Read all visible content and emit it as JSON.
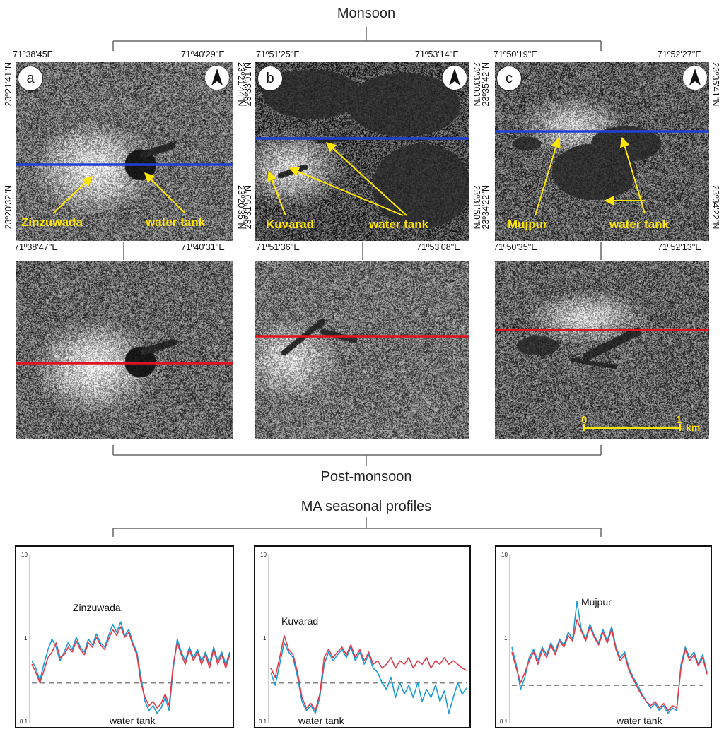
{
  "headings": {
    "top": "Monsoon",
    "middle": "Post-monsoon",
    "profiles": "MA seasonal profiles"
  },
  "colors": {
    "monsoon_line": "#1f3fd6",
    "post_line": "#e0141e",
    "annotation": "#ffe600",
    "profile_blue": "#1a9bd7",
    "profile_red": "#e03c4a",
    "threshold": "#888888"
  },
  "panels": [
    {
      "id": "a",
      "badge": "a",
      "north_icon": "north-arrow-icon",
      "coords": {
        "top_left": "71º38'45E",
        "top_right": "71º40'29''E",
        "bottom_left": "71º38'47''E",
        "bottom_right": "71º40'31''E",
        "left_top": "23º21'41''N",
        "left_bottom": "23º20'32''N",
        "right_top": "23º21'44''N",
        "right_bottom": "23º20'35''N"
      },
      "labels": {
        "place": "Zinzuwada",
        "tank": "water tank"
      }
    },
    {
      "id": "b",
      "badge": "b",
      "north_icon": "north-arrow-icon",
      "coords": {
        "top_left": "71º51'25''E",
        "top_right": "71º53'14''E",
        "bottom_left": "71º51'36''E",
        "bottom_right": "71º53'08''E",
        "left_top": "23º33'01''N",
        "left_bottom": "23º31'50''N",
        "right_top": "23º33'03''N",
        "right_bottom": "23º31'50''N"
      },
      "labels": {
        "place": "Kuvarad",
        "tank": "water tank"
      }
    },
    {
      "id": "c",
      "badge": "c",
      "north_icon": "north-arrow-icon",
      "coords": {
        "top_left": "71º50'19''E",
        "top_right": "71º52'27''E",
        "bottom_left": "71º50'35''E",
        "bottom_right": "71º52'13''E",
        "left_top": "23º35'42''N",
        "left_bottom": "23º34'22''N",
        "right_top": "23º35'41''N",
        "right_bottom": "23º34'22''N"
      },
      "labels": {
        "place": "Mujpur",
        "tank": "water tank"
      }
    }
  ],
  "scale_bar": {
    "start": "0",
    "end": "1",
    "unit": "km"
  },
  "chart_data": [
    {
      "type": "line",
      "yscale": "log",
      "ylim": [
        0.1,
        10
      ],
      "yticks": [
        "10",
        "1",
        "0.1"
      ],
      "threshold": 0.3,
      "annotations": [
        "Zinzuwada",
        "water tank"
      ],
      "series": [
        {
          "values": [
            0.55,
            0.45,
            0.32,
            0.5,
            0.75,
            1.0,
            0.8,
            0.55,
            0.7,
            0.9,
            0.75,
            1.05,
            0.8,
            0.7,
            1.0,
            0.85,
            1.15,
            0.9,
            0.8,
            1.1,
            1.5,
            1.2,
            1.6,
            1.1,
            1.3,
            0.9,
            0.7,
            0.35,
            0.18,
            0.14,
            0.16,
            0.13,
            0.15,
            0.2,
            0.14,
            0.45,
            1.0,
            0.7,
            0.55,
            0.8,
            0.6,
            0.75,
            0.55,
            0.7,
            0.5,
            0.8,
            0.55,
            0.7,
            0.5,
            0.7
          ]
        },
        {
          "values": [
            0.5,
            0.4,
            0.3,
            0.42,
            0.6,
            0.7,
            0.9,
            0.6,
            0.65,
            0.8,
            0.7,
            0.95,
            0.75,
            0.65,
            0.9,
            0.8,
            1.05,
            0.85,
            0.75,
            1.0,
            1.3,
            1.1,
            1.4,
            1.05,
            1.2,
            0.85,
            0.65,
            0.3,
            0.2,
            0.16,
            0.18,
            0.15,
            0.17,
            0.22,
            0.16,
            0.5,
            0.9,
            0.65,
            0.5,
            0.75,
            0.55,
            0.7,
            0.5,
            0.65,
            0.45,
            0.75,
            0.5,
            0.65,
            0.45,
            0.65
          ]
        }
      ]
    },
    {
      "type": "line",
      "yscale": "log",
      "ylim": [
        0.1,
        10
      ],
      "yticks": [
        "10",
        "1",
        "0.1"
      ],
      "threshold": 0.3,
      "annotations": [
        "Kuvarad",
        "water tank"
      ],
      "series": [
        {
          "values": [
            0.4,
            0.28,
            0.5,
            0.9,
            0.7,
            0.6,
            0.35,
            0.18,
            0.14,
            0.16,
            0.13,
            0.2,
            0.5,
            0.7,
            0.55,
            0.65,
            0.75,
            0.6,
            0.8,
            0.55,
            0.7,
            0.5,
            0.65,
            0.45,
            0.4,
            0.3,
            0.25,
            0.35,
            0.2,
            0.3,
            0.22,
            0.28,
            0.2,
            0.3,
            0.18,
            0.25,
            0.2,
            0.28,
            0.18,
            0.24,
            0.13,
            0.2,
            0.3,
            0.22,
            0.26
          ]
        },
        {
          "values": [
            0.45,
            0.35,
            0.6,
            1.1,
            0.75,
            0.65,
            0.4,
            0.2,
            0.15,
            0.17,
            0.14,
            0.22,
            0.6,
            0.75,
            0.6,
            0.7,
            0.8,
            0.65,
            0.85,
            0.6,
            0.75,
            0.55,
            0.7,
            0.5,
            0.55,
            0.45,
            0.5,
            0.6,
            0.45,
            0.55,
            0.5,
            0.6,
            0.45,
            0.55,
            0.5,
            0.6,
            0.45,
            0.55,
            0.5,
            0.6,
            0.5,
            0.55,
            0.5,
            0.45,
            0.42
          ]
        }
      ]
    },
    {
      "type": "line",
      "yscale": "log",
      "ylim": [
        0.1,
        10
      ],
      "yticks": [
        "10",
        "1",
        "0.1"
      ],
      "threshold": 0.28,
      "annotations": [
        "Mujpur",
        "water tank"
      ],
      "series": [
        {
          "values": [
            0.8,
            0.5,
            0.25,
            0.35,
            0.6,
            0.75,
            0.55,
            0.8,
            0.65,
            0.9,
            0.7,
            1.0,
            0.85,
            1.2,
            1.0,
            2.8,
            1.3,
            1.0,
            1.5,
            1.1,
            0.9,
            1.3,
            0.95,
            1.4,
            0.8,
            0.6,
            0.7,
            0.45,
            0.35,
            0.28,
            0.22,
            0.18,
            0.15,
            0.17,
            0.14,
            0.16,
            0.13,
            0.15,
            0.14,
            0.5,
            0.8,
            0.6,
            0.7,
            0.5,
            0.65,
            0.4
          ]
        },
        {
          "values": [
            0.7,
            0.45,
            0.3,
            0.4,
            0.55,
            0.7,
            0.5,
            0.75,
            0.6,
            0.85,
            0.65,
            0.95,
            0.8,
            1.1,
            0.95,
            1.7,
            1.25,
            0.95,
            1.4,
            1.05,
            0.85,
            1.2,
            0.9,
            1.3,
            0.75,
            0.55,
            0.65,
            0.42,
            0.33,
            0.26,
            0.21,
            0.18,
            0.16,
            0.18,
            0.15,
            0.17,
            0.14,
            0.16,
            0.15,
            0.45,
            0.75,
            0.55,
            0.65,
            0.48,
            0.6,
            0.38
          ]
        }
      ]
    }
  ]
}
